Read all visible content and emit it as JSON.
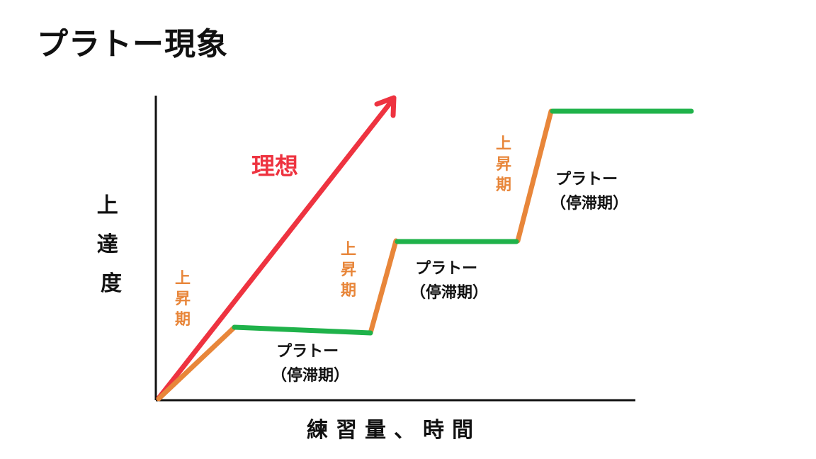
{
  "title": "プラトー現象",
  "y_axis_label": "上達度",
  "x_axis_label": "練習量、時間",
  "ideal_label": "理想",
  "rise_label": "上昇期",
  "plateau_label_line1": "プラトー",
  "plateau_label_line2": "（停滞期）",
  "colors": {
    "axis": "#111111",
    "ideal": "#ee3340",
    "rise": "#e8863a",
    "plateau": "#1fb24a",
    "text": "#111111"
  }
}
